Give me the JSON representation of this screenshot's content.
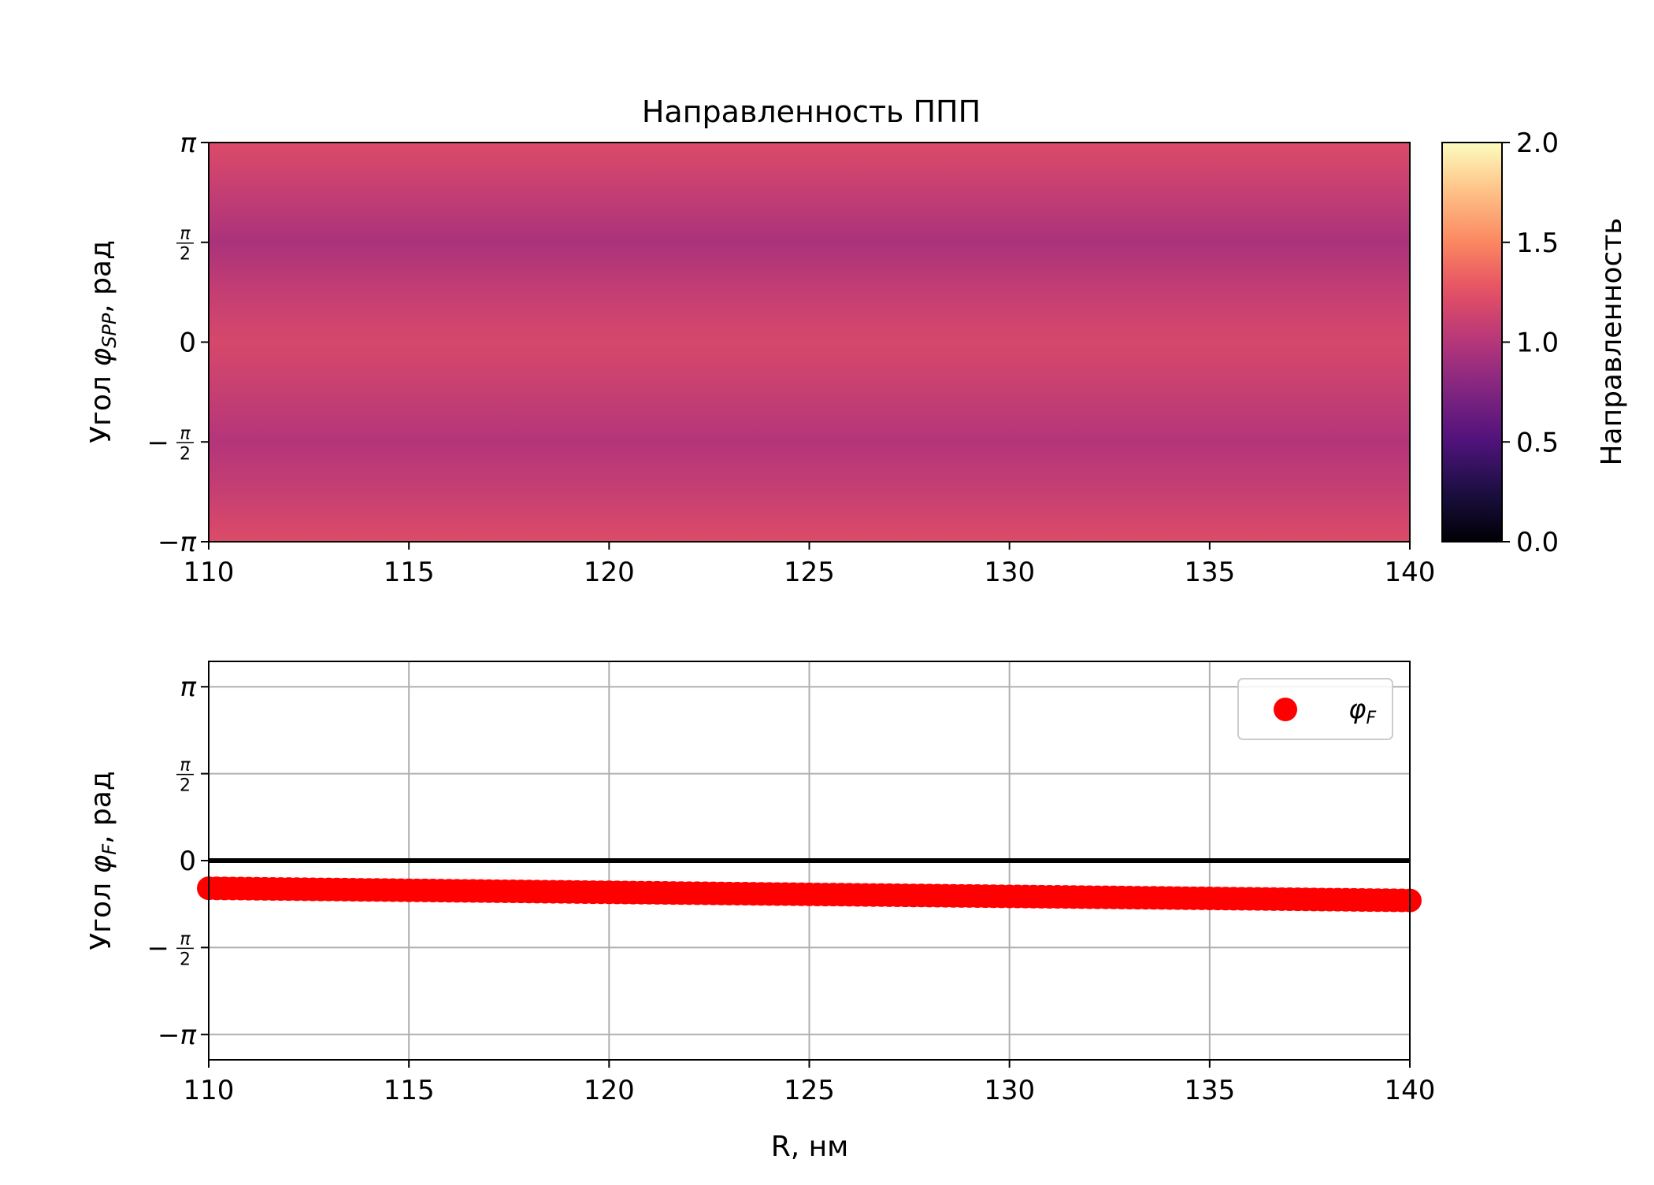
{
  "chart_data": [
    {
      "type": "heatmap",
      "title": "Направленность ППП",
      "xlabel": "",
      "ylabel": "Угол φ_SPP, рад",
      "ylabel_parts": [
        "Угол ",
        "φ",
        "SPP",
        ", рад"
      ],
      "xlim": [
        110,
        140
      ],
      "ylim": [
        -3.14159,
        3.14159
      ],
      "x_ticks": [
        110,
        115,
        120,
        125,
        130,
        135,
        140
      ],
      "x_tick_labels": [
        "110",
        "115",
        "120",
        "125",
        "130",
        "135",
        "140"
      ],
      "y_ticks": [
        -3.14159,
        -1.5708,
        0,
        1.5708,
        3.14159
      ],
      "y_tick_labels": [
        "−π",
        "−π/2",
        "0",
        "π/2",
        "π"
      ],
      "colormap": "magma",
      "colorbar": {
        "label": "Направленность",
        "range": [
          0,
          2
        ],
        "ticks": [
          0,
          0.5,
          1,
          1.5,
          2
        ],
        "tick_labels": [
          "0.0",
          "0.5",
          "1.0",
          "1.5",
          "2.0"
        ]
      },
      "value_profile": {
        "description_angle_values": [
          -3.14159,
          -2.356,
          -1.5708,
          -0.785,
          0,
          0.785,
          1.5708,
          2.356,
          3.14159
        ],
        "values_at_R110": [
          1.22,
          1.1,
          0.98,
          1.1,
          1.2,
          1.1,
          0.96,
          1.1,
          1.22
        ],
        "values_at_R125": [
          1.21,
          1.09,
          0.99,
          1.09,
          1.18,
          1.08,
          0.95,
          1.08,
          1.21
        ],
        "values_at_R140": [
          1.22,
          1.1,
          0.99,
          1.1,
          1.19,
          1.09,
          0.96,
          1.09,
          1.22
        ]
      },
      "grid": false
    },
    {
      "type": "scatter",
      "xlabel": "R, нм",
      "ylabel": "Угол φ_F, рад",
      "ylabel_parts": [
        "Угол ",
        "φ",
        "F",
        ", рад"
      ],
      "xlim": [
        110,
        140
      ],
      "ylim": [
        -3.6,
        3.6
      ],
      "x_ticks": [
        110,
        115,
        120,
        125,
        130,
        135,
        140
      ],
      "x_tick_labels": [
        "110",
        "115",
        "120",
        "125",
        "130",
        "135",
        "140"
      ],
      "y_ticks": [
        -3.14159,
        -1.5708,
        0,
        1.5708,
        3.14159
      ],
      "y_tick_labels": [
        "−π",
        "−π/2",
        "0",
        "π/2",
        "π"
      ],
      "grid": true,
      "legend_position": "top-right",
      "hline": {
        "y": 0,
        "color": "#000000"
      },
      "series": [
        {
          "name": "φ_F",
          "name_parts": [
            "φ",
            "F"
          ],
          "color": "#ff0000",
          "x_start": 110,
          "x_end": 140,
          "x_step": 0.2,
          "y_start": -0.5,
          "y_end": -0.72
        }
      ]
    }
  ]
}
